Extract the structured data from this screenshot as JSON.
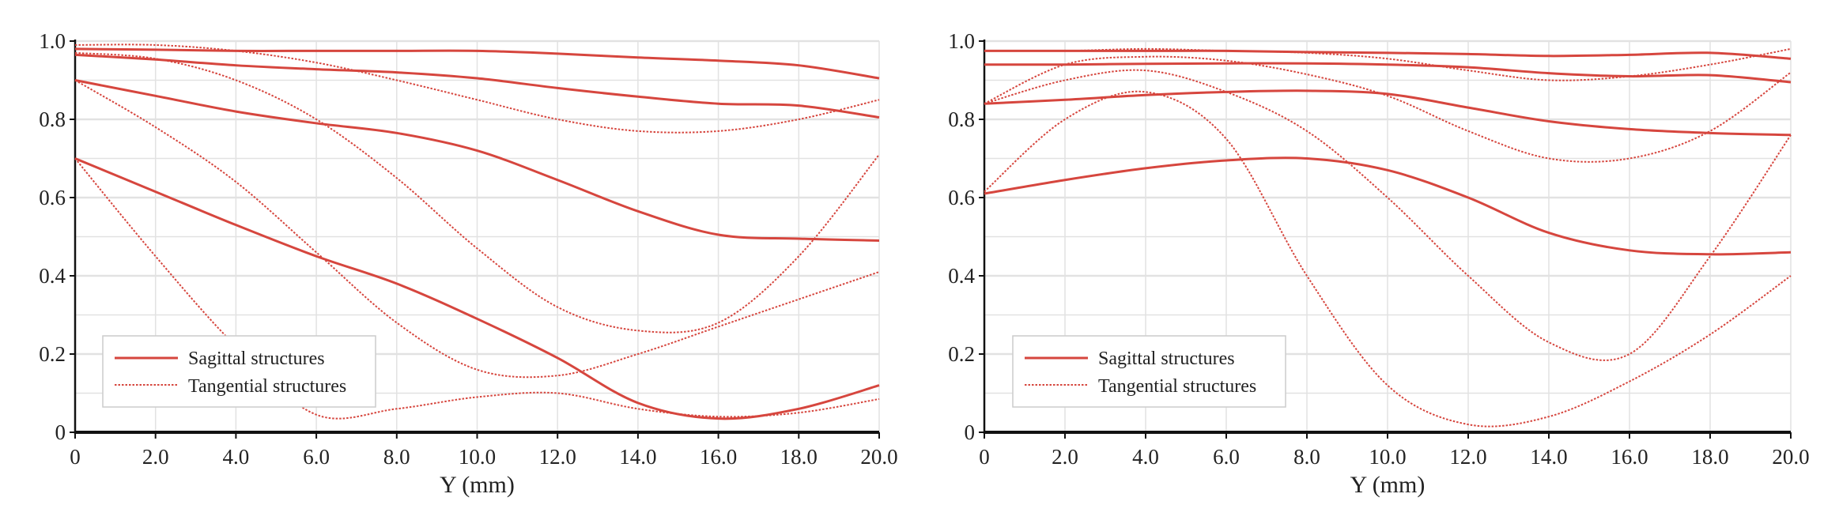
{
  "chart_data": [
    {
      "type": "line",
      "title": "",
      "xlabel": "Y (mm)",
      "ylabel": "",
      "xlim": [
        0,
        20
      ],
      "ylim": [
        0,
        1
      ],
      "grid": true,
      "legend_position": "bottom-left",
      "legend": [
        "Sagittal structures",
        "Tangential structures"
      ],
      "x_ticks": [
        "0",
        "2.0",
        "4.0",
        "6.0",
        "8.0",
        "10.0",
        "12.0",
        "14.0",
        "16.0",
        "18.0",
        "20.0"
      ],
      "y_ticks": [
        "0",
        "0.2",
        "0.4",
        "0.6",
        "0.8",
        "1.0"
      ],
      "x": [
        0,
        2,
        4,
        6,
        8,
        10,
        12,
        14,
        16,
        18,
        20
      ],
      "series": [
        {
          "name": "Sagittal structures",
          "style": "solid",
          "values": [
            0.98,
            0.978,
            0.975,
            0.975,
            0.975,
            0.975,
            0.968,
            0.958,
            0.95,
            0.938,
            0.905
          ]
        },
        {
          "name": "Sagittal structures",
          "style": "solid",
          "values": [
            0.965,
            0.953,
            0.938,
            0.928,
            0.92,
            0.905,
            0.88,
            0.858,
            0.84,
            0.835,
            0.805
          ]
        },
        {
          "name": "Sagittal structures",
          "style": "solid",
          "values": [
            0.9,
            0.86,
            0.82,
            0.79,
            0.765,
            0.72,
            0.645,
            0.565,
            0.505,
            0.495,
            0.49
          ]
        },
        {
          "name": "Sagittal structures",
          "style": "solid",
          "values": [
            0.7,
            0.615,
            0.53,
            0.45,
            0.38,
            0.29,
            0.19,
            0.075,
            0.035,
            0.06,
            0.12
          ]
        },
        {
          "name": "Tangential structures",
          "style": "dotted",
          "values": [
            0.99,
            0.99,
            0.975,
            0.945,
            0.9,
            0.85,
            0.8,
            0.77,
            0.77,
            0.8,
            0.85
          ]
        },
        {
          "name": "Tangential structures",
          "style": "dotted",
          "values": [
            0.97,
            0.955,
            0.9,
            0.8,
            0.65,
            0.47,
            0.32,
            0.26,
            0.28,
            0.45,
            0.71
          ]
        },
        {
          "name": "Tangential structures",
          "style": "dotted",
          "values": [
            0.9,
            0.78,
            0.64,
            0.46,
            0.28,
            0.16,
            0.145,
            0.2,
            0.27,
            0.34,
            0.41
          ]
        },
        {
          "name": "Tangential structures",
          "style": "dotted",
          "values": [
            0.7,
            0.45,
            0.22,
            0.045,
            0.06,
            0.09,
            0.1,
            0.06,
            0.04,
            0.05,
            0.085
          ]
        }
      ]
    },
    {
      "type": "line",
      "title": "",
      "xlabel": "Y (mm)",
      "ylabel": "",
      "xlim": [
        0,
        20
      ],
      "ylim": [
        0,
        1
      ],
      "grid": true,
      "legend_position": "bottom-left",
      "legend": [
        "Sagittal structures",
        "Tangential structures"
      ],
      "x_ticks": [
        "0",
        "2.0",
        "4.0",
        "6.0",
        "8.0",
        "10.0",
        "12.0",
        "14.0",
        "16.0",
        "18.0",
        "20.0"
      ],
      "y_ticks": [
        "0",
        "0.2",
        "0.4",
        "0.6",
        "0.8",
        "1.0"
      ],
      "x": [
        0,
        2,
        4,
        6,
        8,
        10,
        12,
        14,
        16,
        18,
        20
      ],
      "series": [
        {
          "name": "Sagittal structures",
          "style": "solid",
          "values": [
            0.975,
            0.975,
            0.975,
            0.975,
            0.972,
            0.97,
            0.967,
            0.962,
            0.965,
            0.97,
            0.955
          ]
        },
        {
          "name": "Sagittal structures",
          "style": "solid",
          "values": [
            0.94,
            0.94,
            0.942,
            0.943,
            0.943,
            0.94,
            0.933,
            0.918,
            0.91,
            0.913,
            0.895
          ]
        },
        {
          "name": "Sagittal structures",
          "style": "solid",
          "values": [
            0.84,
            0.85,
            0.862,
            0.87,
            0.873,
            0.865,
            0.83,
            0.795,
            0.775,
            0.765,
            0.76
          ]
        },
        {
          "name": "Sagittal structures",
          "style": "solid",
          "values": [
            0.61,
            0.645,
            0.675,
            0.695,
            0.7,
            0.67,
            0.6,
            0.51,
            0.465,
            0.455,
            0.46
          ]
        },
        {
          "name": "Tangential structures",
          "style": "dotted",
          "values": [
            0.975,
            0.975,
            0.98,
            0.975,
            0.97,
            0.955,
            0.925,
            0.9,
            0.91,
            0.94,
            0.98
          ]
        },
        {
          "name": "Tangential structures",
          "style": "dotted",
          "values": [
            0.84,
            0.94,
            0.96,
            0.95,
            0.915,
            0.86,
            0.77,
            0.7,
            0.7,
            0.77,
            0.92
          ]
        },
        {
          "name": "Tangential structures",
          "style": "dotted",
          "values": [
            0.84,
            0.9,
            0.925,
            0.87,
            0.77,
            0.6,
            0.4,
            0.23,
            0.2,
            0.45,
            0.76
          ]
        },
        {
          "name": "Tangential structures",
          "style": "dotted",
          "values": [
            0.615,
            0.8,
            0.87,
            0.75,
            0.4,
            0.12,
            0.02,
            0.04,
            0.13,
            0.25,
            0.4
          ]
        }
      ]
    }
  ],
  "colors": {
    "line": "#d6463e",
    "grid": "#e2e2e2",
    "axis": "#111111"
  }
}
